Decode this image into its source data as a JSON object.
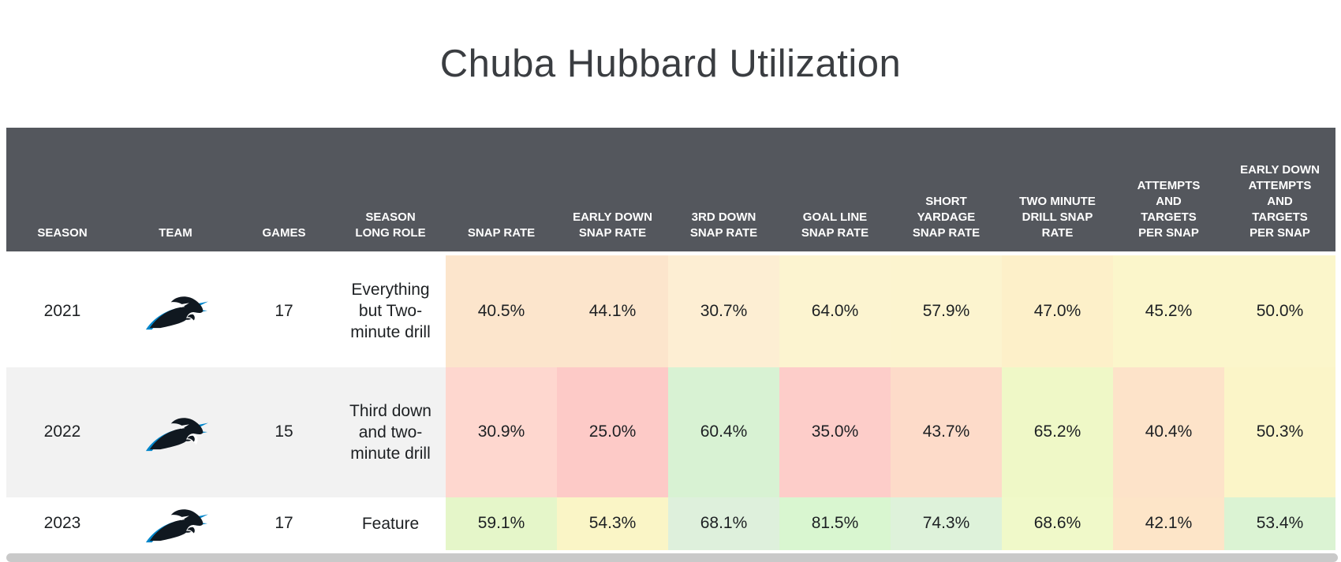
{
  "title": "Chuba Hubbard Utilization",
  "colors": {
    "header_bg": "#54575d",
    "header_text": "#ffffff",
    "row_bg": "#ffffff",
    "row_alt_bg": "#f2f2f2",
    "title_text": "#3a3d41",
    "body_text": "#1d2023",
    "panthers_blue": "#0085CA",
    "panthers_black": "#101820",
    "scrollbar": "#c9c9c9"
  },
  "table": {
    "columns": [
      {
        "id": "season",
        "label": "SEASON",
        "type": "info"
      },
      {
        "id": "team",
        "label": "TEAM",
        "type": "info"
      },
      {
        "id": "games",
        "label": "GAMES",
        "type": "info"
      },
      {
        "id": "role",
        "label": "SEASON LONG ROLE",
        "type": "info"
      },
      {
        "id": "snap-rate",
        "label": "SNAP RATE",
        "type": "stat"
      },
      {
        "id": "early-down-snap-rate",
        "label": "EARLY DOWN SNAP RATE",
        "type": "stat"
      },
      {
        "id": "third-down-snap-rate",
        "label": "3RD DOWN SNAP RATE",
        "type": "stat"
      },
      {
        "id": "goal-line-snap-rate",
        "label": "GOAL LINE SNAP RATE",
        "type": "stat"
      },
      {
        "id": "short-yardage-snap-rate",
        "label": "SHORT YARDAGE SNAP RATE",
        "type": "stat"
      },
      {
        "id": "two-minute-drill-snap-rate",
        "label": "TWO MINUTE DRILL SNAP RATE",
        "type": "stat"
      },
      {
        "id": "attempts-and-targets-per-snap",
        "label": "ATTEMPTS AND TARGETS PER SNAP",
        "type": "stat"
      },
      {
        "id": "early-down-attempts-and-targets-per-snap",
        "label": "EARLY DOWN ATTEMPTS AND TARGETS PER SNAP",
        "type": "stat"
      }
    ],
    "rows": [
      {
        "season": "2021",
        "team": "Carolina Panthers",
        "team_icon": "panthers-logo",
        "games": "17",
        "role": "Everything but Two-minute drill",
        "stats": [
          {
            "value": "40.5%",
            "bg": "#fce5cc"
          },
          {
            "value": "44.1%",
            "bg": "#fce5cc"
          },
          {
            "value": "30.7%",
            "bg": "#fdeed3"
          },
          {
            "value": "64.0%",
            "bg": "#fcf4d0"
          },
          {
            "value": "57.9%",
            "bg": "#fcf4cf"
          },
          {
            "value": "47.0%",
            "bg": "#fdf0c9"
          },
          {
            "value": "45.2%",
            "bg": "#fbf6cb"
          },
          {
            "value": "50.0%",
            "bg": "#fbf6cb"
          }
        ]
      },
      {
        "season": "2022",
        "team": "Carolina Panthers",
        "team_icon": "panthers-logo",
        "games": "15",
        "role": "Third down and two-minute drill",
        "stats": [
          {
            "value": "30.9%",
            "bg": "#fed7cf"
          },
          {
            "value": "25.0%",
            "bg": "#fdcac7"
          },
          {
            "value": "60.4%",
            "bg": "#d8f2d3"
          },
          {
            "value": "35.0%",
            "bg": "#fdcdc9"
          },
          {
            "value": "43.7%",
            "bg": "#fddbc9"
          },
          {
            "value": "65.2%",
            "bg": "#eff8c7"
          },
          {
            "value": "40.4%",
            "bg": "#fde3c9"
          },
          {
            "value": "50.3%",
            "bg": "#fbf5c8"
          }
        ]
      },
      {
        "season": "2023",
        "team": "Carolina Panthers",
        "team_icon": "panthers-logo",
        "games": "17",
        "role": "Feature",
        "stats": [
          {
            "value": "59.1%",
            "bg": "#e5f6c9"
          },
          {
            "value": "54.3%",
            "bg": "#faf5c6"
          },
          {
            "value": "68.1%",
            "bg": "#def0dc"
          },
          {
            "value": "81.5%",
            "bg": "#d9f6d0"
          },
          {
            "value": "74.3%",
            "bg": "#def2da"
          },
          {
            "value": "68.6%",
            "bg": "#f0f9c9"
          },
          {
            "value": "42.1%",
            "bg": "#fde5c8"
          },
          {
            "value": "53.4%",
            "bg": "#dbf3d3"
          }
        ]
      }
    ]
  },
  "chart_data": {
    "type": "table",
    "title": "Chuba Hubbard Utilization",
    "columns": [
      "SEASON",
      "TEAM",
      "GAMES",
      "SEASON LONG ROLE",
      "SNAP RATE",
      "EARLY DOWN SNAP RATE",
      "3RD DOWN SNAP RATE",
      "GOAL LINE SNAP RATE",
      "SHORT YARDAGE SNAP RATE",
      "TWO MINUTE DRILL SNAP RATE",
      "ATTEMPTS AND TARGETS PER SNAP",
      "EARLY DOWN ATTEMPTS AND TARGETS PER SNAP"
    ],
    "rows": [
      {
        "season": 2021,
        "team": "Carolina Panthers",
        "games": 17,
        "season_long_role": "Everything but Two-minute drill",
        "snap_rate_pct": 40.5,
        "early_down_snap_rate_pct": 44.1,
        "third_down_snap_rate_pct": 30.7,
        "goal_line_snap_rate_pct": 64.0,
        "short_yardage_snap_rate_pct": 57.9,
        "two_minute_drill_snap_rate_pct": 47.0,
        "attempts_and_targets_per_snap_pct": 45.2,
        "early_down_attempts_and_targets_per_snap_pct": 50.0
      },
      {
        "season": 2022,
        "team": "Carolina Panthers",
        "games": 15,
        "season_long_role": "Third down and two-minute drill",
        "snap_rate_pct": 30.9,
        "early_down_snap_rate_pct": 25.0,
        "third_down_snap_rate_pct": 60.4,
        "goal_line_snap_rate_pct": 35.0,
        "short_yardage_snap_rate_pct": 43.7,
        "two_minute_drill_snap_rate_pct": 65.2,
        "attempts_and_targets_per_snap_pct": 40.4,
        "early_down_attempts_and_targets_per_snap_pct": 50.3
      },
      {
        "season": 2023,
        "team": "Carolina Panthers",
        "games": 17,
        "season_long_role": "Feature",
        "snap_rate_pct": 59.1,
        "early_down_snap_rate_pct": 54.3,
        "third_down_snap_rate_pct": 68.1,
        "goal_line_snap_rate_pct": 81.5,
        "short_yardage_snap_rate_pct": 74.3,
        "two_minute_drill_snap_rate_pct": 68.6,
        "attempts_and_targets_per_snap_pct": 42.1,
        "early_down_attempts_and_targets_per_snap_pct": 53.4
      }
    ],
    "cell_formatting": "red-to-green conditional color scale per value",
    "legend_position": "none",
    "grid": false
  }
}
